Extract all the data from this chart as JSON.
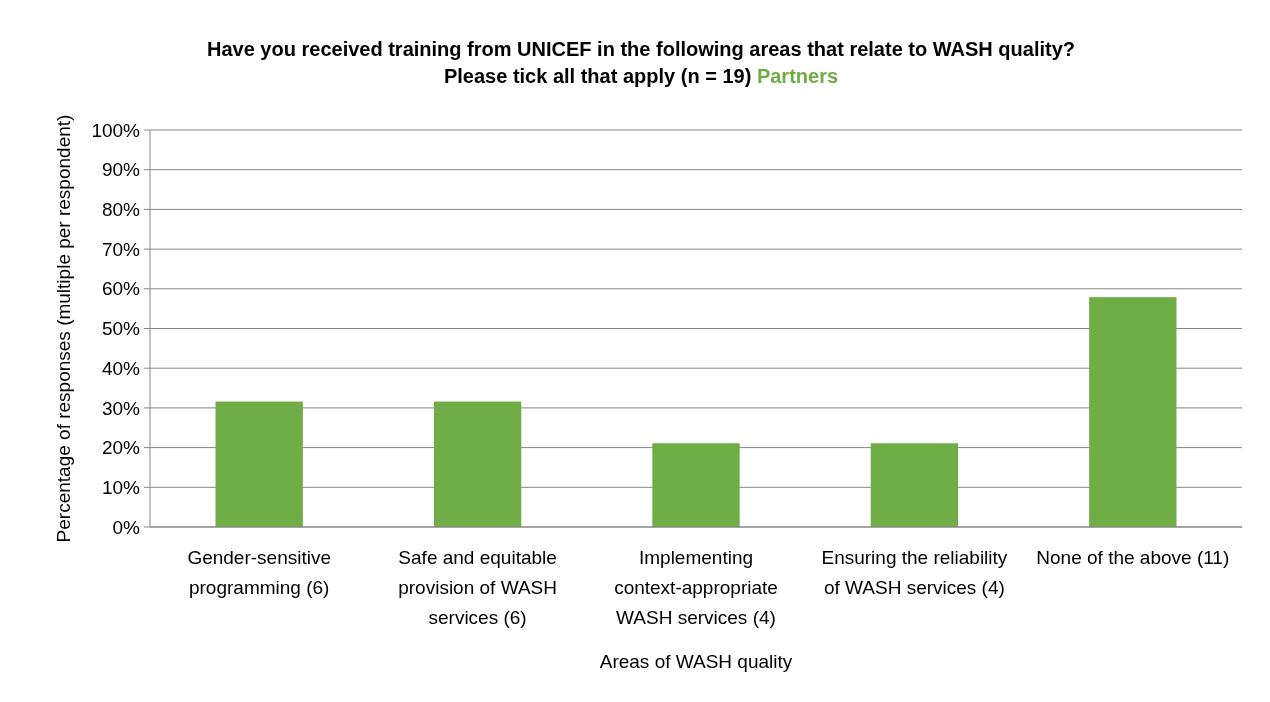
{
  "chart_data": {
    "type": "bar",
    "title": "Have you received training from UNICEF in the following areas that relate to WASH quality? Please tick all that apply (n = 19)",
    "subtitle": "Partners",
    "categories": [
      "Gender-sensitive programming (6)",
      "Safe and equitable provision of WASH services (6)",
      "Implementing context-appropriate WASH services (4)",
      "Ensuring the reliability of WASH services (4)",
      "None of the above (11)"
    ],
    "values": [
      31.6,
      31.6,
      21.1,
      21.1,
      57.9
    ],
    "color": "#70ad47",
    "xlabel": "Areas of WASH quality",
    "ylabel": "Percentage of responses (multiple per respondent)",
    "ylim": [
      0,
      100
    ],
    "yticks": [
      {
        "value": 0,
        "label": "0%"
      },
      {
        "value": 10,
        "label": "10%"
      },
      {
        "value": 20,
        "label": "20%"
      },
      {
        "value": 30,
        "label": "30%"
      },
      {
        "value": 40,
        "label": "40%"
      },
      {
        "value": 50,
        "label": "50%"
      },
      {
        "value": 60,
        "label": "60%"
      },
      {
        "value": 70,
        "label": "70%"
      },
      {
        "value": 80,
        "label": "80%"
      },
      {
        "value": 90,
        "label": "90%"
      },
      {
        "value": 100,
        "label": "100%"
      }
    ],
    "grid": true
  }
}
